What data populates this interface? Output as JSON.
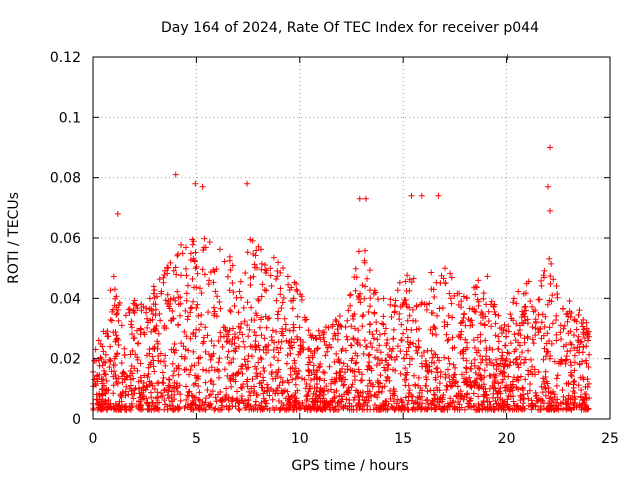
{
  "chart_data": {
    "type": "scatter",
    "title": "Day 164 of 2024, Rate Of TEC Index for receiver p044",
    "xlabel": "GPS time / hours",
    "ylabel": "ROTI / TECUs",
    "xlim": [
      0,
      25
    ],
    "ylim": [
      0,
      0.12
    ],
    "xticks": [
      0,
      5,
      10,
      15,
      20,
      25
    ],
    "yticks": [
      0,
      0.02,
      0.04,
      0.06,
      0.08,
      0.1,
      0.12
    ],
    "xtick_labels": [
      "0",
      "5",
      "10",
      "15",
      "20",
      "25"
    ],
    "ytick_labels": [
      "0",
      "0.02",
      "0.04",
      "0.06",
      "0.08",
      "0.1",
      "0.12"
    ],
    "grid": true,
    "marker": "+",
    "color": "#ff0000",
    "data_range_x": [
      0,
      24
    ],
    "notable_points": [
      {
        "x": 20.05,
        "y": 0.12
      },
      {
        "x": 22.1,
        "y": 0.09
      },
      {
        "x": 4.0,
        "y": 0.081
      },
      {
        "x": 4.95,
        "y": 0.078
      },
      {
        "x": 7.45,
        "y": 0.078
      },
      {
        "x": 5.3,
        "y": 0.077
      },
      {
        "x": 22.0,
        "y": 0.077
      },
      {
        "x": 15.9,
        "y": 0.074
      },
      {
        "x": 15.4,
        "y": 0.074
      },
      {
        "x": 16.7,
        "y": 0.074
      },
      {
        "x": 12.9,
        "y": 0.073
      },
      {
        "x": 13.2,
        "y": 0.073
      },
      {
        "x": 1.2,
        "y": 0.068
      },
      {
        "x": 22.1,
        "y": 0.069
      }
    ],
    "envelope": {
      "hours": [
        0,
        0.5,
        1,
        1.5,
        2,
        2.5,
        3,
        3.5,
        4,
        4.5,
        5,
        5.5,
        6,
        6.5,
        7,
        7.5,
        8,
        8.5,
        9,
        9.5,
        10,
        10.5,
        11,
        11.5,
        12,
        12.5,
        13,
        13.5,
        14,
        14.5,
        15,
        15.5,
        16,
        16.5,
        17,
        17.5,
        18,
        18.5,
        19,
        19.5,
        20,
        20.5,
        21,
        21.5,
        22,
        22.5,
        23,
        23.5,
        24
      ],
      "typical_max": [
        0.022,
        0.03,
        0.05,
        0.035,
        0.04,
        0.04,
        0.045,
        0.05,
        0.06,
        0.058,
        0.065,
        0.06,
        0.058,
        0.055,
        0.05,
        0.06,
        0.058,
        0.055,
        0.052,
        0.048,
        0.045,
        0.03,
        0.03,
        0.032,
        0.035,
        0.045,
        0.06,
        0.05,
        0.045,
        0.04,
        0.055,
        0.048,
        0.045,
        0.05,
        0.055,
        0.045,
        0.04,
        0.045,
        0.05,
        0.04,
        0.03,
        0.045,
        0.048,
        0.042,
        0.055,
        0.045,
        0.04,
        0.038,
        0.03
      ],
      "floor": 0.003
    }
  }
}
